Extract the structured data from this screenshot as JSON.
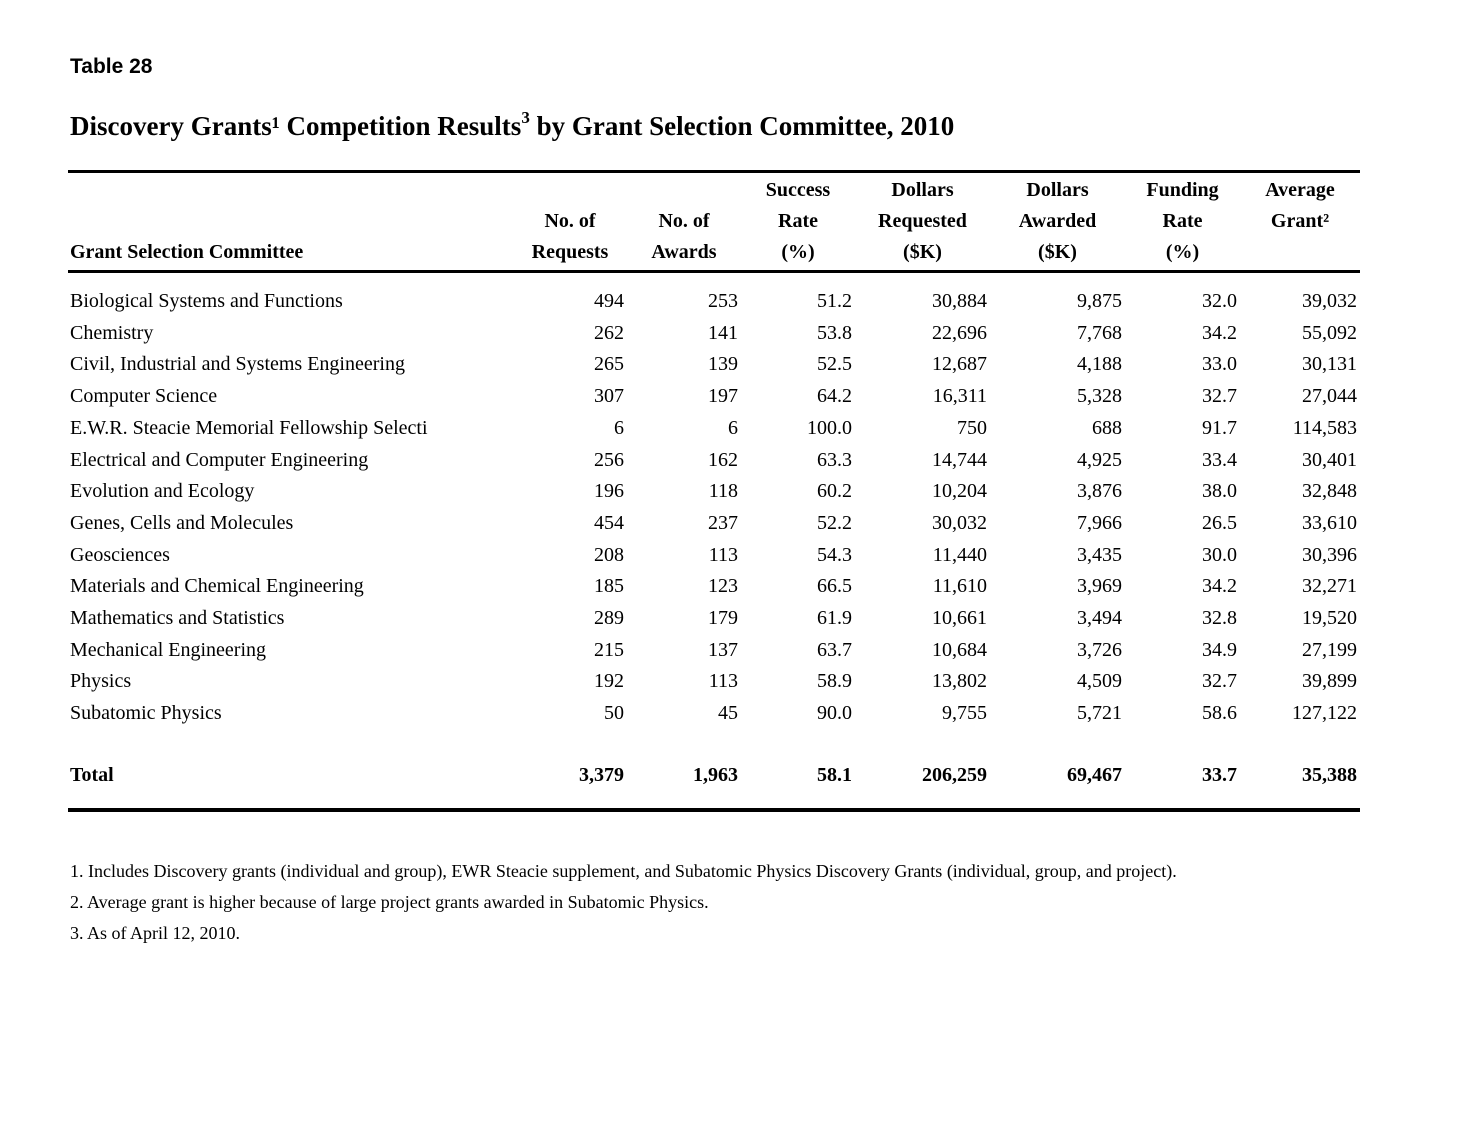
{
  "page": {
    "label": "Table 28",
    "title_pre": "Discovery Grants¹ Competition Results",
    "title_sup": "3",
    "title_post": " by Grant Selection Committee, 2010"
  },
  "table": {
    "header": {
      "committee": "Grant Selection Committee",
      "requests": "No. of\nRequests",
      "awards": "No. of\nAwards",
      "success_rate": "Success\nRate\n(%)",
      "dollars_requested": "Dollars\nRequested\n($K)",
      "dollars_awarded": "Dollars\nAwarded\n($K)",
      "funding_rate": "Funding\nRate\n(%)",
      "average_grant": "Average\nGrant²\n "
    },
    "rows": [
      {
        "committee": "Biological Systems and Functions",
        "requests": "494",
        "awards": "253",
        "success_rate": "51.2",
        "dollars_requested": "30,884",
        "dollars_awarded": "9,875",
        "funding_rate": "32.0",
        "average_grant": "39,032"
      },
      {
        "committee": "Chemistry",
        "requests": "262",
        "awards": "141",
        "success_rate": "53.8",
        "dollars_requested": "22,696",
        "dollars_awarded": "7,768",
        "funding_rate": "34.2",
        "average_grant": "55,092"
      },
      {
        "committee": "Civil, Industrial and Systems Engineering",
        "requests": "265",
        "awards": "139",
        "success_rate": "52.5",
        "dollars_requested": "12,687",
        "dollars_awarded": "4,188",
        "funding_rate": "33.0",
        "average_grant": "30,131"
      },
      {
        "committee": "Computer Science",
        "requests": "307",
        "awards": "197",
        "success_rate": "64.2",
        "dollars_requested": "16,311",
        "dollars_awarded": "5,328",
        "funding_rate": "32.7",
        "average_grant": "27,044"
      },
      {
        "committee": "E.W.R. Steacie Memorial Fellowship Selecti",
        "requests": "6",
        "awards": "6",
        "success_rate": "100.0",
        "dollars_requested": "750",
        "dollars_awarded": "688",
        "funding_rate": "91.7",
        "average_grant": "114,583"
      },
      {
        "committee": "Electrical and Computer Engineering",
        "requests": "256",
        "awards": "162",
        "success_rate": "63.3",
        "dollars_requested": "14,744",
        "dollars_awarded": "4,925",
        "funding_rate": "33.4",
        "average_grant": "30,401"
      },
      {
        "committee": "Evolution and Ecology",
        "requests": "196",
        "awards": "118",
        "success_rate": "60.2",
        "dollars_requested": "10,204",
        "dollars_awarded": "3,876",
        "funding_rate": "38.0",
        "average_grant": "32,848"
      },
      {
        "committee": "Genes, Cells and Molecules",
        "requests": "454",
        "awards": "237",
        "success_rate": "52.2",
        "dollars_requested": "30,032",
        "dollars_awarded": "7,966",
        "funding_rate": "26.5",
        "average_grant": "33,610"
      },
      {
        "committee": "Geosciences",
        "requests": "208",
        "awards": "113",
        "success_rate": "54.3",
        "dollars_requested": "11,440",
        "dollars_awarded": "3,435",
        "funding_rate": "30.0",
        "average_grant": "30,396"
      },
      {
        "committee": "Materials and Chemical Engineering",
        "requests": "185",
        "awards": "123",
        "success_rate": "66.5",
        "dollars_requested": "11,610",
        "dollars_awarded": "3,969",
        "funding_rate": "34.2",
        "average_grant": "32,271"
      },
      {
        "committee": "Mathematics and Statistics",
        "requests": "289",
        "awards": "179",
        "success_rate": "61.9",
        "dollars_requested": "10,661",
        "dollars_awarded": "3,494",
        "funding_rate": "32.8",
        "average_grant": "19,520"
      },
      {
        "committee": "Mechanical Engineering",
        "requests": "215",
        "awards": "137",
        "success_rate": "63.7",
        "dollars_requested": "10,684",
        "dollars_awarded": "3,726",
        "funding_rate": "34.9",
        "average_grant": "27,199"
      },
      {
        "committee": "Physics",
        "requests": "192",
        "awards": "113",
        "success_rate": "58.9",
        "dollars_requested": "13,802",
        "dollars_awarded": "4,509",
        "funding_rate": "32.7",
        "average_grant": "39,899"
      },
      {
        "committee": "Subatomic Physics",
        "requests": "50",
        "awards": "45",
        "success_rate": "90.0",
        "dollars_requested": "9,755",
        "dollars_awarded": "5,721",
        "funding_rate": "58.6",
        "average_grant": "127,122"
      }
    ],
    "total": {
      "committee": "Total",
      "requests": "3,379",
      "awards": "1,963",
      "success_rate": "58.1",
      "dollars_requested": "206,259",
      "dollars_awarded": "69,467",
      "funding_rate": "33.7",
      "average_grant": "35,388"
    }
  },
  "footnotes": [
    "1. Includes Discovery grants (individual and group), EWR Steacie supplement, and Subatomic Physics Discovery Grants (individual, group, and project).",
    "2. Average grant is higher because of large project grants awarded in Subatomic Physics.",
    "3. As of April 12, 2010."
  ]
}
